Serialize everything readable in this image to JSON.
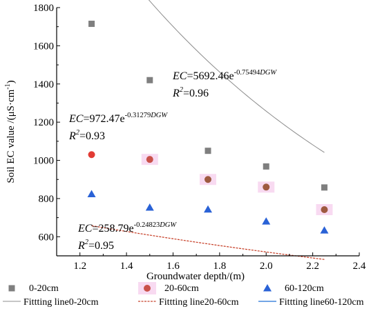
{
  "chart_data": {
    "type": "scatter",
    "xlabel": "Groundwater depth/(m)",
    "ylabel": "Soil EC value /(μS·cm",
    "ylabel_sup": "-1",
    "ylabel_close": ")",
    "xlim": [
      1.1,
      2.4
    ],
    "ylim": [
      500,
      1800
    ],
    "x_ticks": [
      1.2,
      1.4,
      1.6,
      1.8,
      2.0,
      2.2,
      2.4
    ],
    "x_tick_labels": [
      "1.2",
      "1.4",
      "1.6",
      "1.8",
      "2.0",
      "2.2",
      "2.4"
    ],
    "y_ticks": [
      600,
      800,
      1000,
      1200,
      1400,
      1600,
      1800
    ],
    "y_tick_labels": [
      "600",
      "800",
      "1000",
      "1200",
      "1400",
      "1600",
      "1800"
    ],
    "x": [
      1.25,
      1.5,
      1.75,
      2.0,
      2.25
    ],
    "series": [
      {
        "name": "0-20cm",
        "marker": "square",
        "color": "#7f7f7f",
        "values": [
          1715,
          1420,
          1050,
          968,
          858
        ],
        "fit_name": "Fittting line0-20cm",
        "fit_color": "#8c8c8c",
        "fit": {
          "a": 5692.46,
          "b": -0.75494
        },
        "fit_x_range": [
          1.25,
          2.25
        ],
        "equation": {
          "lhs": "EC",
          "coef": "=5692.46e",
          "exp": "-0.75494",
          "var": "DGW",
          "r2_label": "R",
          "r2_sup": "2",
          "r2_value": "=0.96"
        }
      },
      {
        "name": "20-60cm",
        "marker": "circle",
        "color": "#e23b34",
        "colors": [
          "#e23b34",
          "#c9514a",
          "#9e5a40",
          "#9e5a40",
          "#9e5a40"
        ],
        "values": [
          1030,
          1005,
          900,
          860,
          742
        ],
        "fit_name": "Fittting line20-60cm",
        "fit_color": "#c8452e",
        "fit": {
          "a": 972.47,
          "b": -0.31279
        },
        "fit_x_range": [
          1.25,
          2.25
        ],
        "equation": {
          "lhs": "EC",
          "coef": "=972.47e",
          "exp": "-0.31279",
          "var": "DGW",
          "r2_label": "R",
          "r2_sup": "2",
          "r2_value": "=0.93"
        }
      },
      {
        "name": "60-120cm",
        "marker": "triangle",
        "color": "#2a62d6",
        "values": [
          823,
          753,
          743,
          680,
          633
        ],
        "fit_name": "Fittting line60-120cm",
        "fit_color": "#1f6fd6",
        "fit": {
          "a": 258.79,
          "b": -0.24823
        },
        "fit_x_range": [
          1.25,
          2.25
        ],
        "equation": {
          "lhs": "EC",
          "coef": "=258.79e",
          "exp": "-0.24823",
          "var": "DGW",
          "r2_label": "R",
          "r2_sup": "2",
          "r2_value": "=0.95"
        }
      }
    ],
    "grid": false,
    "legend_position": "bottom"
  }
}
